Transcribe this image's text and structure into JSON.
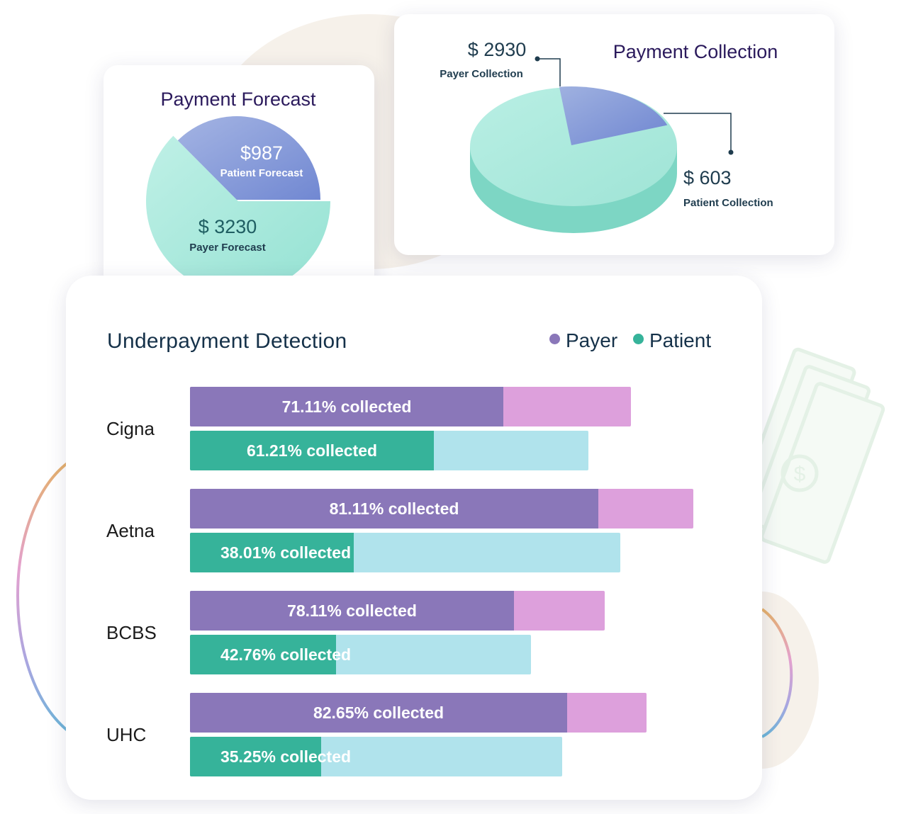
{
  "colors": {
    "payer_fill": "#8a77b9",
    "payer_remainder": "#dda0dc",
    "patient_fill": "#36b39a",
    "patient_remainder": "#b0e3ec",
    "pie_teal": "#a8e7da",
    "pie_blue": "#8a9fd9",
    "title_text": "#2b1a5c"
  },
  "forecast": {
    "title": "Payment Forecast",
    "patient_amount": "$987",
    "patient_label": "Patient Forecast",
    "payer_amount": "$ 3230",
    "payer_label": "Payer Forecast",
    "chart_data": {
      "type": "pie",
      "title": "Payment Forecast",
      "slices": [
        {
          "name": "Patient Forecast",
          "value": 987
        },
        {
          "name": "Payer Forecast",
          "value": 3230
        }
      ]
    }
  },
  "collection": {
    "title": "Payment Collection",
    "payer_amount": "$ 2930",
    "payer_label": "Payer Collection",
    "patient_amount": "$ 603",
    "patient_label": "Patient Collection",
    "chart_data": {
      "type": "pie",
      "title": "Payment Collection",
      "slices": [
        {
          "name": "Payer Collection",
          "value": 2930
        },
        {
          "name": "Patient Collection",
          "value": 603
        }
      ]
    }
  },
  "underpayment": {
    "title": "Underpayment Detection",
    "legend": [
      "Payer",
      "Patient"
    ],
    "chart_data": {
      "type": "bar",
      "orientation": "horizontal",
      "title": "Underpayment Detection",
      "categories": [
        "Cigna",
        "Aetna",
        "BCBS",
        "UHC"
      ],
      "series": [
        {
          "name": "Payer",
          "collected_percent": [
            71.11,
            81.11,
            78.11,
            82.65
          ],
          "labels": [
            "71.11% collected",
            "81.11% collected",
            "78.11% collected",
            "82.65% collected"
          ],
          "billed_total_relative": [
            0.84,
            0.96,
            0.79,
            0.87
          ]
        },
        {
          "name": "Patient",
          "collected_percent": [
            61.21,
            38.01,
            42.76,
            35.25
          ],
          "labels": [
            "61.21% collected",
            "38.01% collected",
            "42.76% collected",
            "35.25% collected"
          ],
          "billed_total_relative": [
            0.76,
            0.82,
            0.65,
            0.71
          ]
        }
      ],
      "legend_position": "top-right"
    }
  }
}
